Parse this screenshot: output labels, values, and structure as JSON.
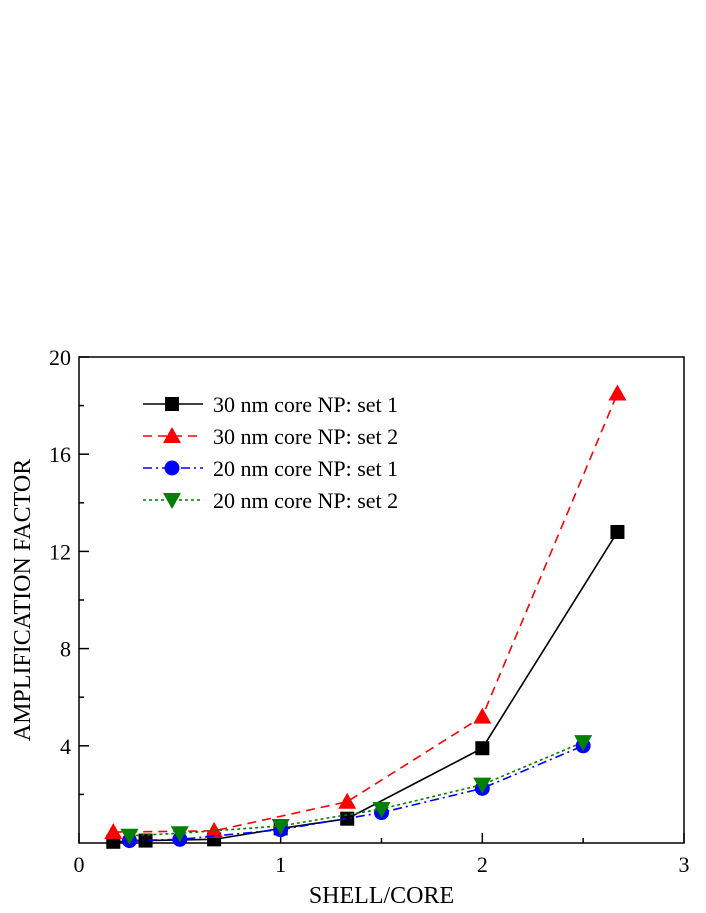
{
  "chart_data": {
    "type": "line",
    "title": "",
    "xlabel": "SHELL/CORE",
    "ylabel": "AMPLIFICATION  FACTOR",
    "xlim": [
      0,
      3
    ],
    "ylim": [
      0,
      20
    ],
    "x_ticks": [
      0,
      1,
      2,
      3
    ],
    "y_ticks": [
      4,
      8,
      12,
      16,
      20
    ],
    "x_tick_labels": [
      "0",
      "1",
      "2",
      "3"
    ],
    "y_tick_labels": [
      "4",
      "8",
      "12",
      "16",
      "20"
    ],
    "grid": false,
    "legend_position": "top-left",
    "series": [
      {
        "name": "30 nm core NP: set 1",
        "color": "#000000",
        "line_style": "solid",
        "marker": "square",
        "x": [
          0.17,
          0.33,
          0.67,
          1.0,
          1.33,
          2.0,
          2.67
        ],
        "y": [
          0.05,
          0.1,
          0.15,
          0.6,
          1.0,
          3.9,
          12.8
        ]
      },
      {
        "name": "30 nm core NP: set 2",
        "color": "#ff0000",
        "line_style": "dashed",
        "marker": "triangle-up",
        "x": [
          0.17,
          0.67,
          1.33,
          2.0,
          2.67
        ],
        "y": [
          0.45,
          0.5,
          1.7,
          5.2,
          18.5
        ]
      },
      {
        "name": "20 nm core NP: set 1",
        "color": "#0000ff",
        "line_style": "dash-dot",
        "marker": "circle",
        "x": [
          0.25,
          0.5,
          1.0,
          1.5,
          2.0,
          2.5
        ],
        "y": [
          0.1,
          0.15,
          0.55,
          1.25,
          2.25,
          4.0
        ]
      },
      {
        "name": "20 nm core NP: set 2",
        "color": "#008000",
        "line_style": "dotted",
        "marker": "triangle-down",
        "x": [
          0.25,
          0.5,
          1.0,
          1.5,
          2.0,
          2.5
        ],
        "y": [
          0.3,
          0.4,
          0.7,
          1.4,
          2.4,
          4.15
        ]
      }
    ]
  }
}
